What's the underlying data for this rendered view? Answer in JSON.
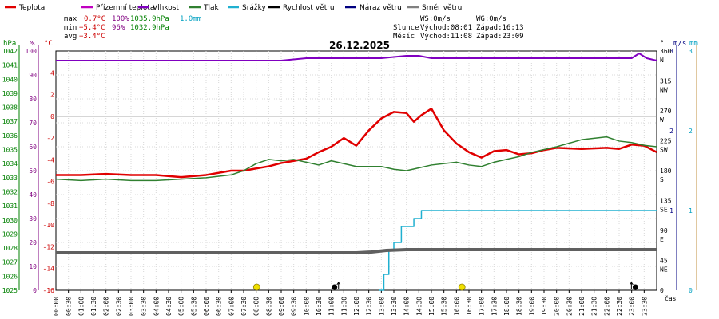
{
  "chart_data": {
    "type": "line",
    "title": "26.12.2025",
    "x_ticks": [
      "00:30",
      "01:00",
      "01:30",
      "02:00",
      "02:30",
      "03:00",
      "03:30",
      "04:00",
      "04:30",
      "05:00",
      "05:30",
      "06:00",
      "06:30",
      "07:00",
      "07:30",
      "08:00",
      "08:30",
      "09:00",
      "09:30",
      "10:00",
      "10:30",
      "11:00",
      "11:30",
      "12:00",
      "12:30",
      "13:00",
      "13:30",
      "14:00",
      "14:30",
      "15:00",
      "15:30",
      "16:00",
      "16:30",
      "17:00",
      "17:30",
      "18:00",
      "18:30",
      "19:00",
      "19:30",
      "20:00",
      "20:30",
      "21:00",
      "21:30",
      "22:00",
      "22:30",
      "23:00",
      "23:30"
    ],
    "xlabel": "čas",
    "axes": {
      "pressure": {
        "unit": "hPa",
        "ylim": [
          1025,
          1042
        ],
        "ticks": [
          1025,
          1026,
          1027,
          1028,
          1029,
          1030,
          1031,
          1032,
          1033,
          1034,
          1035,
          1036,
          1037,
          1038,
          1039,
          1040,
          1041,
          1042
        ],
        "color": "#008000"
      },
      "humidity": {
        "unit": "%",
        "ylim": [
          0,
          100
        ],
        "ticks": [
          0,
          10,
          20,
          30,
          40,
          50,
          60,
          70,
          80,
          90,
          100
        ],
        "color": "#800080"
      },
      "temperature": {
        "unit": "°C",
        "ylim": [
          -16,
          6
        ],
        "ticks": [
          -16,
          -14,
          -12,
          -10,
          -8,
          -6,
          -4,
          -2,
          0,
          2,
          4
        ],
        "color": "#cc0000"
      },
      "direction": {
        "unit": "°",
        "ylim": [
          0,
          360
        ],
        "ticks": [
          0,
          45,
          90,
          135,
          180,
          225,
          270,
          315,
          360
        ],
        "labels": [
          "",
          "NE",
          "E",
          "SE",
          "S",
          "SW",
          "W",
          "NW",
          "N"
        ],
        "color": "#000000"
      },
      "wind": {
        "unit": "m/s",
        "ylim": [
          0,
          3
        ],
        "ticks": [
          1,
          2,
          3
        ],
        "color": "#000080"
      },
      "rain": {
        "unit": "mm",
        "ylim": [
          0,
          3
        ],
        "ticks": [
          0,
          1,
          2,
          3
        ],
        "color": "#00a0c0"
      }
    },
    "series": [
      {
        "name": "Teplota",
        "color": "#e00000",
        "axis": "temperature",
        "x": [
          0,
          1,
          2,
          3,
          4,
          5,
          6,
          7,
          7.5,
          8,
          8.5,
          9,
          9.5,
          10,
          10.5,
          11,
          11.5,
          12,
          12.5,
          13,
          13.5,
          14,
          14.3,
          14.6,
          15,
          15.5,
          16,
          16.5,
          17,
          17.5,
          18,
          18.5,
          19,
          19.5,
          20,
          21,
          22,
          22.5,
          23,
          23.5,
          24
        ],
        "y": [
          -5.4,
          -5.4,
          -5.3,
          -5.4,
          -5.4,
          -5.6,
          -5.4,
          -5.0,
          -5.0,
          -4.8,
          -4.6,
          -4.3,
          -4.1,
          -3.9,
          -3.3,
          -2.8,
          -2.0,
          -2.7,
          -1.3,
          -0.2,
          0.4,
          0.3,
          -0.5,
          0.1,
          0.7,
          -1.3,
          -2.5,
          -3.3,
          -3.8,
          -3.2,
          -3.1,
          -3.5,
          -3.4,
          -3.1,
          -2.9,
          -3.0,
          -2.9,
          -3.0,
          -2.6,
          -2.7,
          -3.3
        ]
      },
      {
        "name": "Vlhkost",
        "color": "#8000c0",
        "axis": "humidity",
        "x": [
          0,
          1,
          2,
          3,
          4,
          5,
          6,
          7,
          8,
          9,
          10,
          11,
          12,
          13,
          14,
          14.5,
          15,
          16,
          17,
          18,
          19,
          20,
          21,
          22,
          23,
          23.3,
          23.6,
          24
        ],
        "y": [
          96,
          96,
          96,
          96,
          96,
          96,
          96,
          96,
          96,
          96,
          97,
          97,
          97,
          97,
          98,
          98,
          97,
          97,
          97,
          97,
          97,
          97,
          97,
          97,
          97,
          99,
          97,
          96
        ]
      },
      {
        "name": "Tlak",
        "color": "#308030",
        "axis": "pressure",
        "x": [
          0,
          1,
          2,
          3,
          4,
          5,
          6,
          7,
          7.5,
          8,
          8.5,
          9,
          9.5,
          10,
          10.5,
          11,
          12,
          13,
          13.5,
          14,
          14.5,
          15,
          15.5,
          16,
          16.5,
          17,
          17.5,
          18,
          18.5,
          19,
          20,
          21,
          22,
          22.5,
          23,
          23.5,
          24
        ],
        "y": [
          1032.9,
          1032.8,
          1032.9,
          1032.8,
          1032.8,
          1032.9,
          1033.0,
          1033.2,
          1033.5,
          1034.0,
          1034.3,
          1034.2,
          1034.3,
          1034.1,
          1033.9,
          1034.2,
          1033.8,
          1033.8,
          1033.6,
          1033.5,
          1033.7,
          1033.9,
          1034.0,
          1034.1,
          1033.9,
          1033.8,
          1034.1,
          1034.3,
          1034.5,
          1034.8,
          1035.2,
          1035.7,
          1035.9,
          1035.6,
          1035.5,
          1035.3,
          1035.2
        ]
      },
      {
        "name": "Srážky",
        "color": "#20b0d0",
        "axis": "rain",
        "x": [
          12.9,
          13.1,
          13.3,
          13.5,
          13.8,
          14.0,
          14.3,
          14.6,
          14.8,
          24
        ],
        "y": [
          0.0,
          0.2,
          0.5,
          0.6,
          0.8,
          0.8,
          0.9,
          1.0,
          1.0,
          1.0
        ]
      },
      {
        "name": "Rychlost větru",
        "color": "#606060",
        "axis": "wind",
        "x": [
          0,
          6,
          12,
          12.6,
          13.2,
          14,
          15,
          20,
          24
        ],
        "y": [
          0.47,
          0.47,
          0.47,
          0.48,
          0.5,
          0.51,
          0.51,
          0.51,
          0.51
        ]
      }
    ],
    "legend_only": [
      {
        "name": "Přízemní teplota",
        "color": "#c000c0"
      },
      {
        "name": "Náraz větru",
        "color": "#000080"
      },
      {
        "name": "Směr větru",
        "color": "#808080"
      }
    ],
    "markers": [
      {
        "type": "sunrise",
        "x": 8.02,
        "color": "#f0e000"
      },
      {
        "type": "moonrise",
        "x": 11.13,
        "color": "#000000"
      },
      {
        "type": "sunset",
        "x": 16.22,
        "color": "#f0e000"
      },
      {
        "type": "moonset",
        "x": 23.15,
        "color": "#000000"
      }
    ]
  },
  "stats": {
    "max_label": "max",
    "max_temp": "0.7°C",
    "max_hum": "100%",
    "max_press": "1035.9hPa",
    "max_rain": "1.0mm",
    "min_label": "min",
    "min_temp": "−5.4°C",
    "min_hum": "96%",
    "min_press": "1032.9hPa",
    "avg_label": "avg",
    "avg_temp": "−3.4°C"
  },
  "wind_info": {
    "ws": "WS:0m/s",
    "wg": "WG:0m/s"
  },
  "sun": {
    "label": "Slunce",
    "rise": "Východ:08:01",
    "set": "Západ:16:13"
  },
  "moon": {
    "label": "Měsíc",
    "rise": "Východ:11:08",
    "set": "Západ:23:09"
  }
}
